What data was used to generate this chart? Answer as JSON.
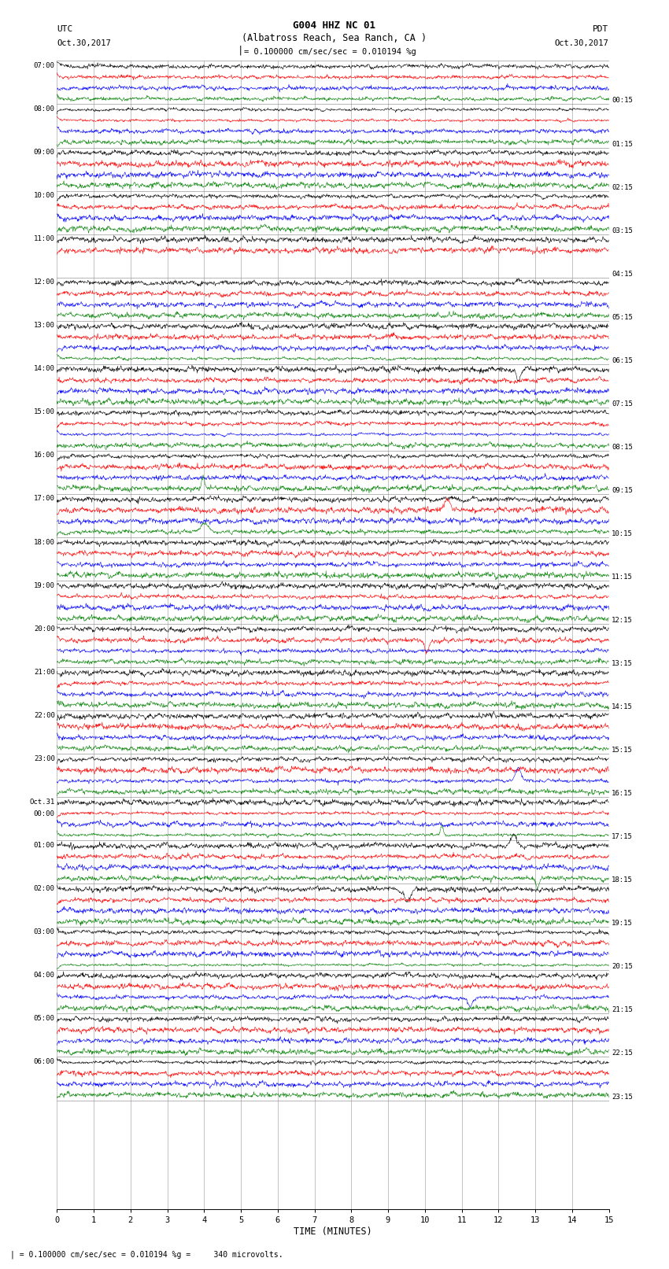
{
  "title_line1": "G004 HHZ NC 01",
  "title_line2": "(Albatross Reach, Sea Ranch, CA )",
  "label_left_top": "UTC",
  "label_left_date": "Oct.30,2017",
  "label_right_top": "PDT",
  "label_right_date": "Oct.30,2017",
  "scale_label": "| = 0.100000 cm/sec/sec = 0.010194 %g =     340 microvolts.",
  "scale_bar_label": "| = 0.100000 cm/sec/sec = 0.010194 %g",
  "xlabel": "TIME (MINUTES)",
  "xmin": 0,
  "xmax": 15,
  "xticks": [
    0,
    1,
    2,
    3,
    4,
    5,
    6,
    7,
    8,
    9,
    10,
    11,
    12,
    13,
    14,
    15
  ],
  "left_times": [
    "07:00",
    "08:00",
    "09:00",
    "10:00",
    "11:00",
    "12:00",
    "13:00",
    "14:00",
    "15:00",
    "16:00",
    "17:00",
    "18:00",
    "19:00",
    "20:00",
    "21:00",
    "22:00",
    "23:00",
    "Oct.31\n00:00",
    "01:00",
    "02:00",
    "03:00",
    "04:00",
    "05:00",
    "06:00"
  ],
  "right_times": [
    "00:15",
    "01:15",
    "02:15",
    "03:15",
    "04:15",
    "05:15",
    "06:15",
    "07:15",
    "08:15",
    "09:15",
    "10:15",
    "11:15",
    "12:15",
    "13:15",
    "14:15",
    "15:15",
    "16:15",
    "17:15",
    "18:15",
    "19:15",
    "20:15",
    "21:15",
    "22:15",
    "23:15"
  ],
  "n_rows": 24,
  "traces_per_row": 4,
  "colors": [
    "black",
    "red",
    "blue",
    "green"
  ],
  "bg_color": "white",
  "plot_bg": "white",
  "grid_color": "#888888",
  "fig_width": 8.5,
  "fig_height": 16.13,
  "dpi": 100,
  "special_row": 4,
  "special_traces": 2
}
